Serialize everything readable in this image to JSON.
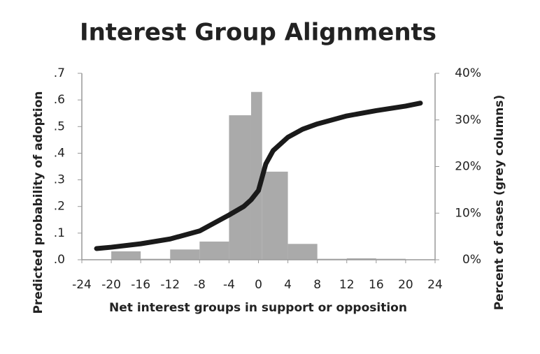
{
  "chart_data": {
    "type": "histogram-line",
    "title": "Interest Group Alignments",
    "x_label": "Net interest groups in support or opposition",
    "y_label": "Predicted probability of adoption",
    "y2_label": "Percent of cases (grey columns)",
    "xlim": [
      -24,
      24
    ],
    "xticks": [
      -24,
      -20,
      -16,
      -12,
      -8,
      -4,
      0,
      4,
      8,
      12,
      16,
      20,
      24
    ],
    "ylim": [
      0,
      0.7
    ],
    "yticks": [
      {
        "value": 0,
        "label": ".0"
      },
      {
        "value": 0.1,
        "label": ".1"
      },
      {
        "value": 0.2,
        "label": ".2"
      },
      {
        "value": 0.3,
        "label": ".3"
      },
      {
        "value": 0.4,
        "label": ".4"
      },
      {
        "value": 0.5,
        "label": ".5"
      },
      {
        "value": 0.6,
        "label": ".6"
      },
      {
        "value": 0.7,
        "label": ".7"
      }
    ],
    "y2lim": [
      0,
      40
    ],
    "y2ticks": [
      {
        "value": 0,
        "label": "0%"
      },
      {
        "value": 10,
        "label": "10%"
      },
      {
        "value": 20,
        "label": "20%"
      },
      {
        "value": 30,
        "label": "30%"
      },
      {
        "value": 40,
        "label": "40%"
      }
    ],
    "bins": [
      -20,
      -16,
      -12,
      -8,
      -4,
      -1,
      0.5,
      4,
      8,
      12,
      16,
      20
    ],
    "counts": [
      1.8,
      0.2,
      2.2,
      3.9,
      31,
      36,
      18.9,
      3.4,
      0.2,
      0.3,
      0.2
    ],
    "bar_color": "#aaaaaa",
    "line": {
      "color": "#1a1a1a",
      "x": [
        -22,
        -20,
        -16,
        -12,
        -8,
        -4,
        -2,
        -1,
        0,
        1,
        2,
        4,
        6,
        8,
        12,
        16,
        20,
        22
      ],
      "values": [
        0.042,
        0.047,
        0.06,
        0.078,
        0.108,
        0.168,
        0.2,
        0.225,
        0.26,
        0.36,
        0.41,
        0.46,
        0.49,
        0.51,
        0.54,
        0.56,
        0.577,
        0.588
      ]
    }
  }
}
